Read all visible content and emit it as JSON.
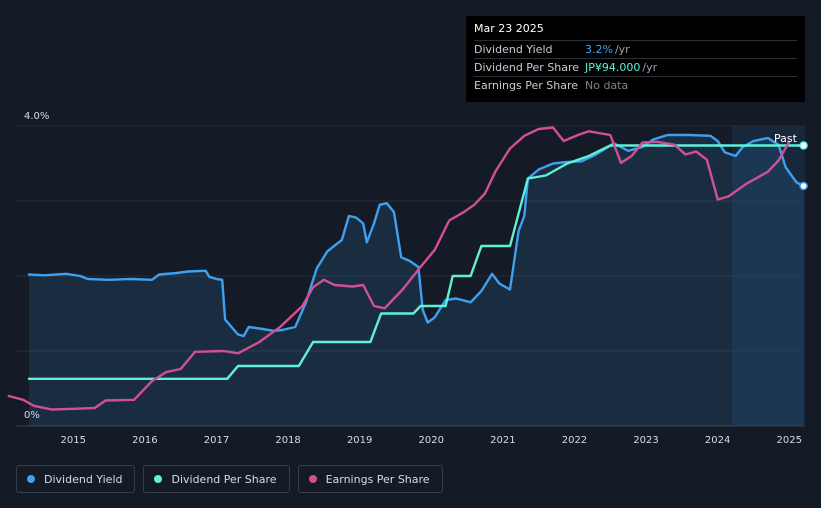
{
  "tooltip": {
    "date": "Mar 23 2025",
    "rows": [
      {
        "label": "Dividend Yield",
        "value": "3.2%",
        "unit": "/yr"
      },
      {
        "label": "Dividend Per Share",
        "value": "JP¥94.000",
        "unit": "/yr"
      },
      {
        "label": "Earnings Per Share",
        "value": "No data",
        "unit": ""
      }
    ]
  },
  "past_label": "Past",
  "legend": [
    {
      "label": "Dividend Yield",
      "color": "#3ea0f0"
    },
    {
      "label": "Dividend Per Share",
      "color": "#5ff0d6"
    },
    {
      "label": "Earnings Per Share",
      "color": "#d24f96"
    }
  ],
  "chart_data": {
    "type": "line",
    "title": "",
    "xlabel": "",
    "ylabel": "",
    "y_tick_labels": [
      "4.0%",
      "0%"
    ],
    "x_tick_labels": [
      "2015",
      "2016",
      "2017",
      "2018",
      "2019",
      "2020",
      "2021",
      "2022",
      "2023",
      "2024",
      "2025"
    ],
    "xlim": [
      2014.2,
      2025.22
    ],
    "ylim": [
      0,
      4.0
    ],
    "grid": true,
    "legend_position": "bottom-left",
    "highlight_from": 2024.2,
    "series": [
      {
        "name": "Dividend Yield",
        "unit": "%",
        "color": "#3ea0f0",
        "filled": true,
        "points": [
          [
            2014.38,
            2.02
          ],
          [
            2014.6,
            2.01
          ],
          [
            2014.9,
            2.03
          ],
          [
            2015.1,
            2.0
          ],
          [
            2015.2,
            1.96
          ],
          [
            2015.5,
            1.95
          ],
          [
            2015.8,
            1.96
          ],
          [
            2016.1,
            1.95
          ],
          [
            2016.2,
            2.02
          ],
          [
            2016.45,
            2.04
          ],
          [
            2016.6,
            2.06
          ],
          [
            2016.85,
            2.07
          ],
          [
            2016.9,
            1.99
          ],
          [
            2017.0,
            1.96
          ],
          [
            2017.08,
            1.95
          ],
          [
            2017.12,
            1.42
          ],
          [
            2017.3,
            1.22
          ],
          [
            2017.38,
            1.2
          ],
          [
            2017.45,
            1.32
          ],
          [
            2017.6,
            1.3
          ],
          [
            2017.8,
            1.27
          ],
          [
            2017.92,
            1.28
          ],
          [
            2018.1,
            1.32
          ],
          [
            2018.25,
            1.65
          ],
          [
            2018.4,
            2.1
          ],
          [
            2018.55,
            2.33
          ],
          [
            2018.75,
            2.48
          ],
          [
            2018.85,
            2.8
          ],
          [
            2018.95,
            2.78
          ],
          [
            2019.05,
            2.7
          ],
          [
            2019.1,
            2.45
          ],
          [
            2019.2,
            2.7
          ],
          [
            2019.28,
            2.95
          ],
          [
            2019.38,
            2.97
          ],
          [
            2019.48,
            2.85
          ],
          [
            2019.58,
            2.25
          ],
          [
            2019.7,
            2.2
          ],
          [
            2019.82,
            2.12
          ],
          [
            2019.88,
            1.55
          ],
          [
            2019.95,
            1.38
          ],
          [
            2020.05,
            1.45
          ],
          [
            2020.2,
            1.68
          ],
          [
            2020.35,
            1.7
          ],
          [
            2020.55,
            1.65
          ],
          [
            2020.7,
            1.8
          ],
          [
            2020.85,
            2.03
          ],
          [
            2020.95,
            1.9
          ],
          [
            2021.1,
            1.82
          ],
          [
            2021.22,
            2.6
          ],
          [
            2021.3,
            2.8
          ],
          [
            2021.35,
            3.3
          ],
          [
            2021.5,
            3.42
          ],
          [
            2021.7,
            3.5
          ],
          [
            2021.9,
            3.52
          ],
          [
            2022.1,
            3.53
          ],
          [
            2022.3,
            3.62
          ],
          [
            2022.55,
            3.77
          ],
          [
            2022.75,
            3.67
          ],
          [
            2022.95,
            3.72
          ],
          [
            2023.1,
            3.82
          ],
          [
            2023.3,
            3.88
          ],
          [
            2023.6,
            3.88
          ],
          [
            2023.9,
            3.87
          ],
          [
            2024.0,
            3.8
          ],
          [
            2024.1,
            3.65
          ],
          [
            2024.25,
            3.6
          ],
          [
            2024.35,
            3.72
          ],
          [
            2024.5,
            3.8
          ],
          [
            2024.7,
            3.84
          ],
          [
            2024.85,
            3.75
          ],
          [
            2024.95,
            3.45
          ],
          [
            2025.1,
            3.25
          ],
          [
            2025.2,
            3.2
          ]
        ]
      },
      {
        "name": "Dividend Per Share",
        "unit": "JP¥",
        "color": "#5ff0d6",
        "points": [
          [
            2014.38,
            0.63
          ],
          [
            2017.15,
            0.63
          ],
          [
            2017.3,
            0.8
          ],
          [
            2018.15,
            0.8
          ],
          [
            2018.35,
            1.12
          ],
          [
            2019.15,
            1.12
          ],
          [
            2019.3,
            1.5
          ],
          [
            2019.75,
            1.5
          ],
          [
            2019.85,
            1.6
          ],
          [
            2020.2,
            1.6
          ],
          [
            2020.3,
            2.0
          ],
          [
            2020.55,
            2.0
          ],
          [
            2020.7,
            2.4
          ],
          [
            2021.1,
            2.4
          ],
          [
            2021.35,
            3.3
          ],
          [
            2021.6,
            3.34
          ],
          [
            2021.9,
            3.5
          ],
          [
            2022.2,
            3.6
          ],
          [
            2022.5,
            3.74
          ],
          [
            2025.2,
            3.74
          ]
        ]
      },
      {
        "name": "Earnings Per Share",
        "unit": "JP¥",
        "color": "#d24f96",
        "points": [
          [
            2014.1,
            0.4
          ],
          [
            2014.3,
            0.35
          ],
          [
            2014.45,
            0.27
          ],
          [
            2014.7,
            0.22
          ],
          [
            2015.0,
            0.23
          ],
          [
            2015.3,
            0.24
          ],
          [
            2015.45,
            0.34
          ],
          [
            2015.85,
            0.35
          ],
          [
            2016.1,
            0.6
          ],
          [
            2016.3,
            0.72
          ],
          [
            2016.5,
            0.76
          ],
          [
            2016.7,
            0.99
          ],
          [
            2017.1,
            1.0
          ],
          [
            2017.3,
            0.97
          ],
          [
            2017.6,
            1.12
          ],
          [
            2017.9,
            1.33
          ],
          [
            2018.2,
            1.6
          ],
          [
            2018.35,
            1.85
          ],
          [
            2018.5,
            1.95
          ],
          [
            2018.65,
            1.88
          ],
          [
            2018.9,
            1.86
          ],
          [
            2019.05,
            1.88
          ],
          [
            2019.2,
            1.6
          ],
          [
            2019.35,
            1.57
          ],
          [
            2019.6,
            1.82
          ],
          [
            2019.85,
            2.12
          ],
          [
            2020.05,
            2.35
          ],
          [
            2020.25,
            2.74
          ],
          [
            2020.45,
            2.85
          ],
          [
            2020.6,
            2.95
          ],
          [
            2020.75,
            3.1
          ],
          [
            2020.9,
            3.4
          ],
          [
            2021.1,
            3.7
          ],
          [
            2021.3,
            3.87
          ],
          [
            2021.5,
            3.96
          ],
          [
            2021.7,
            3.98
          ],
          [
            2021.85,
            3.8
          ],
          [
            2022.05,
            3.88
          ],
          [
            2022.2,
            3.93
          ],
          [
            2022.5,
            3.88
          ],
          [
            2022.65,
            3.51
          ],
          [
            2022.8,
            3.6
          ],
          [
            2022.95,
            3.78
          ],
          [
            2023.15,
            3.79
          ],
          [
            2023.4,
            3.75
          ],
          [
            2023.55,
            3.62
          ],
          [
            2023.7,
            3.66
          ],
          [
            2023.85,
            3.55
          ],
          [
            2024.0,
            3.02
          ],
          [
            2024.15,
            3.06
          ],
          [
            2024.4,
            3.23
          ],
          [
            2024.7,
            3.39
          ],
          [
            2024.85,
            3.54
          ],
          [
            2025.0,
            3.79
          ]
        ]
      }
    ]
  }
}
